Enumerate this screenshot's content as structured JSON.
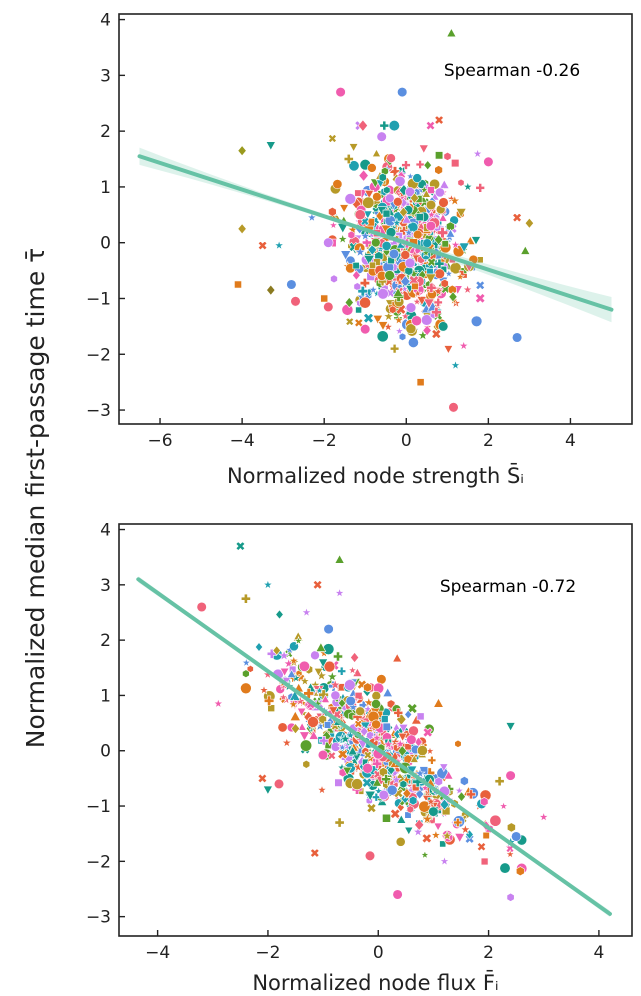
{
  "figure": {
    "ylabel": "Normalized median first-passage time τ̄"
  },
  "chart_data": [
    {
      "type": "scatter",
      "xlabel": "Normalized node strength S̄ᵢ",
      "annotation": "Spearman -0.26",
      "xlim": [
        -7.0,
        5.5
      ],
      "ylim": [
        -3.25,
        4.1
      ],
      "xticks": [
        -6,
        -4,
        -2,
        0,
        2,
        4
      ],
      "yticks": [
        -3,
        -2,
        -1,
        0,
        1,
        2,
        3,
        4
      ],
      "spearman": -0.26,
      "fit": {
        "x": [
          -6.5,
          5.0
        ],
        "y": [
          1.55,
          -1.2
        ]
      },
      "points": [
        {
          "x": 1.1,
          "y": 3.75,
          "m": "triangle",
          "c": "#5aa02c"
        },
        {
          "x": -0.1,
          "y": 2.7,
          "m": "circle",
          "c": "#5b8fe0"
        },
        {
          "x": -1.6,
          "y": 2.7,
          "m": "circle",
          "c": "#f05cae"
        },
        {
          "x": 0.8,
          "y": 2.2,
          "m": "x",
          "c": "#e8603c"
        },
        {
          "x": -4.0,
          "y": 1.65,
          "m": "diamond",
          "c": "#9a9a1e"
        },
        {
          "x": -3.3,
          "y": 1.75,
          "m": "tri_down",
          "c": "#169a8a"
        },
        {
          "x": 2.0,
          "y": 1.45,
          "m": "circle",
          "c": "#f05cae"
        },
        {
          "x": -4.0,
          "y": 0.25,
          "m": "diamond",
          "c": "#b79a28"
        },
        {
          "x": -3.5,
          "y": -0.05,
          "m": "x",
          "c": "#e8603c"
        },
        {
          "x": -3.1,
          "y": -0.05,
          "m": "star",
          "c": "#1fa0b0"
        },
        {
          "x": -4.1,
          "y": -0.75,
          "m": "square",
          "c": "#e07b1c"
        },
        {
          "x": -3.3,
          "y": -0.85,
          "m": "diamond",
          "c": "#8a7a20"
        },
        {
          "x": -2.8,
          "y": -0.75,
          "m": "circle",
          "c": "#5b8fe0"
        },
        {
          "x": -2.7,
          "y": -1.05,
          "m": "circle",
          "c": "#f0627a"
        },
        {
          "x": -2.0,
          "y": -1.0,
          "m": "square",
          "c": "#e07b1c"
        },
        {
          "x": -1.9,
          "y": -1.15,
          "m": "circle",
          "c": "#f0627a"
        },
        {
          "x": 2.7,
          "y": 0.45,
          "m": "x",
          "c": "#e8603c"
        },
        {
          "x": 3.0,
          "y": 0.35,
          "m": "diamond",
          "c": "#b79a28"
        },
        {
          "x": 2.9,
          "y": -0.15,
          "m": "triangle",
          "c": "#5aa02c"
        },
        {
          "x": 2.7,
          "y": -1.7,
          "m": "circle",
          "c": "#5b8fe0"
        },
        {
          "x": 0.35,
          "y": -2.5,
          "m": "square",
          "c": "#e07b1c"
        },
        {
          "x": 1.15,
          "y": -2.95,
          "m": "circle",
          "c": "#f0627a"
        },
        {
          "x": 1.2,
          "y": -2.2,
          "m": "star",
          "c": "#1fa0b0"
        },
        {
          "x": -1.9,
          "y": 0.0,
          "m": "circle",
          "c": "#c882f0"
        },
        {
          "x": -2.3,
          "y": 0.45,
          "m": "star",
          "c": "#5b8fe0"
        },
        {
          "x": -1.4,
          "y": 1.5,
          "m": "plus",
          "c": "#b79a28"
        },
        {
          "x": 1.5,
          "y": 1.0,
          "m": "star",
          "c": "#169a8a"
        },
        {
          "x": 1.7,
          "y": 0.05,
          "m": "tri_down",
          "c": "#169a8a"
        },
        {
          "x": 1.4,
          "y": -1.85,
          "m": "star",
          "c": "#f05cae"
        },
        {
          "x": -1.0,
          "y": -1.55,
          "m": "circle",
          "c": "#f05cae"
        },
        {
          "x": -0.2,
          "y": -0.9,
          "m": "triangle",
          "c": "#5aa02c"
        },
        {
          "x": 0.6,
          "y": 0.3,
          "m": "circle",
          "c": "#f05cae"
        },
        {
          "x": -0.6,
          "y": 1.9,
          "m": "circle",
          "c": "#c882f0"
        },
        {
          "x": 0.9,
          "y": -1.5,
          "m": "circle",
          "c": "#169a8a"
        },
        {
          "x": -0.3,
          "y": -0.2,
          "m": "circle",
          "c": "#5b8fe0"
        },
        {
          "x": 0.2,
          "y": 0.8,
          "m": "diamond",
          "c": "#b79a28"
        }
      ]
    },
    {
      "type": "scatter",
      "xlabel": "Normalized node flux F̄ᵢ",
      "annotation": "Spearman -0.72",
      "xlim": [
        -4.7,
        4.6
      ],
      "ylim": [
        -3.35,
        4.1
      ],
      "xticks": [
        -4,
        -2,
        0,
        2,
        4
      ],
      "yticks": [
        -3,
        -2,
        -1,
        0,
        1,
        2,
        3,
        4
      ],
      "spearman": -0.72,
      "fit": {
        "x": [
          -4.35,
          4.2
        ],
        "y": [
          3.1,
          -2.95
        ]
      },
      "points": [
        {
          "x": -2.5,
          "y": 3.7,
          "m": "x",
          "c": "#169a8a"
        },
        {
          "x": -0.7,
          "y": 3.45,
          "m": "triangle",
          "c": "#5aa02c"
        },
        {
          "x": -3.2,
          "y": 2.6,
          "m": "circle",
          "c": "#f0627a"
        },
        {
          "x": -2.4,
          "y": 2.75,
          "m": "plus",
          "c": "#b79a28"
        },
        {
          "x": -1.1,
          "y": 3.0,
          "m": "x",
          "c": "#e8603c"
        },
        {
          "x": -2.0,
          "y": 3.0,
          "m": "star",
          "c": "#1fa0b0"
        },
        {
          "x": -0.7,
          "y": 2.85,
          "m": "star",
          "c": "#c882f0"
        },
        {
          "x": -0.9,
          "y": 2.2,
          "m": "circle",
          "c": "#5b8fe0"
        },
        {
          "x": 2.4,
          "y": 0.45,
          "m": "tri_down",
          "c": "#169a8a"
        },
        {
          "x": 2.2,
          "y": -0.55,
          "m": "plus",
          "c": "#b79a28"
        },
        {
          "x": 2.4,
          "y": -0.45,
          "m": "circle",
          "c": "#f05cae"
        },
        {
          "x": 2.5,
          "y": -1.55,
          "m": "circle",
          "c": "#5b8fe0"
        },
        {
          "x": 3.0,
          "y": -1.2,
          "m": "star",
          "c": "#f05cae"
        },
        {
          "x": 2.4,
          "y": -2.65,
          "m": "hexagon",
          "c": "#c882f0"
        },
        {
          "x": 0.35,
          "y": -2.6,
          "m": "circle",
          "c": "#f05cae"
        },
        {
          "x": -0.15,
          "y": -1.9,
          "m": "circle",
          "c": "#f0627a"
        },
        {
          "x": -1.15,
          "y": -1.85,
          "m": "x",
          "c": "#e8603c"
        },
        {
          "x": -0.7,
          "y": -1.3,
          "m": "plus",
          "c": "#b79a28"
        },
        {
          "x": -2.1,
          "y": -0.5,
          "m": "x",
          "c": "#e8603c"
        },
        {
          "x": -1.8,
          "y": -0.6,
          "m": "circle",
          "c": "#f0627a"
        },
        {
          "x": -2.0,
          "y": -0.7,
          "m": "tri_down",
          "c": "#169a8a"
        },
        {
          "x": -2.9,
          "y": 0.85,
          "m": "star",
          "c": "#f05cae"
        },
        {
          "x": -1.3,
          "y": 2.5,
          "m": "star",
          "c": "#c882f0"
        },
        {
          "x": 1.2,
          "y": -2.0,
          "m": "star",
          "c": "#c882f0"
        },
        {
          "x": 0.6,
          "y": 0.2,
          "m": "circle",
          "c": "#f05cae"
        },
        {
          "x": -0.5,
          "y": 0.9,
          "m": "circle",
          "c": "#5b8fe0"
        },
        {
          "x": 0.1,
          "y": -0.8,
          "m": "circle",
          "c": "#c882f0"
        },
        {
          "x": 1.0,
          "y": -1.1,
          "m": "circle",
          "c": "#169a8a"
        },
        {
          "x": -1.0,
          "y": 1.6,
          "m": "tri_down",
          "c": "#169a8a"
        },
        {
          "x": -1.5,
          "y": 0.4,
          "m": "diamond",
          "c": "#b79a28"
        }
      ]
    }
  ]
}
